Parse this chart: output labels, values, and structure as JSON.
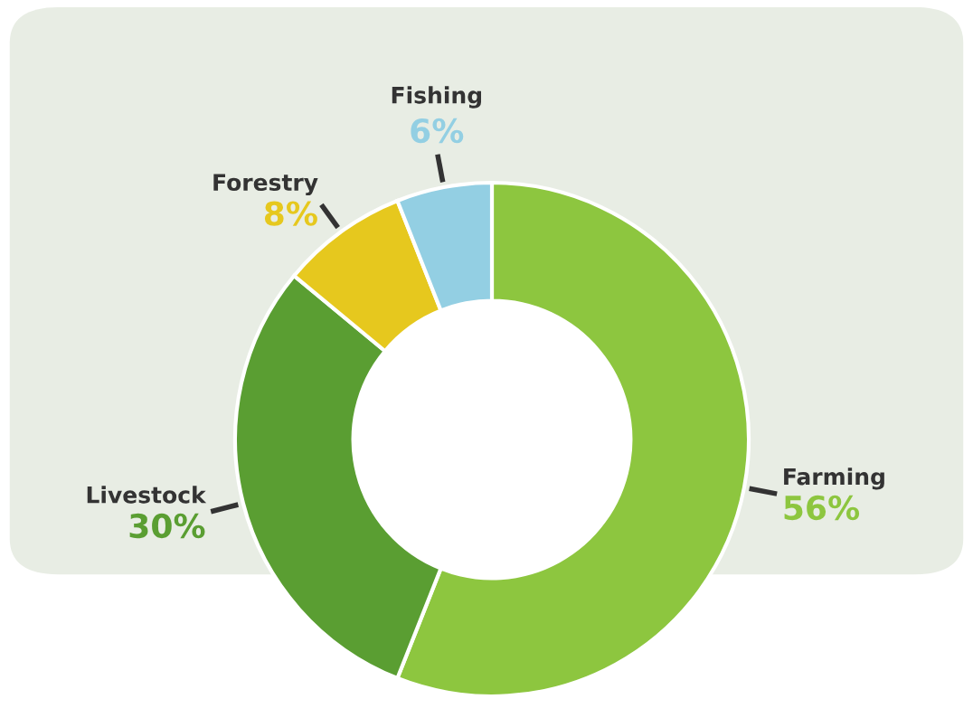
{
  "chart_data": {
    "type": "donut",
    "categories": [
      "Farming",
      "Livestock",
      "Forestry",
      "Fishing"
    ],
    "values": [
      56,
      30,
      8,
      6
    ],
    "colors": [
      "#8dc63f",
      "#5a9e32",
      "#e6c81e",
      "#93cfe3"
    ],
    "value_labels": [
      "56%",
      "30%",
      "8%",
      "6%"
    ],
    "legend": false
  }
}
